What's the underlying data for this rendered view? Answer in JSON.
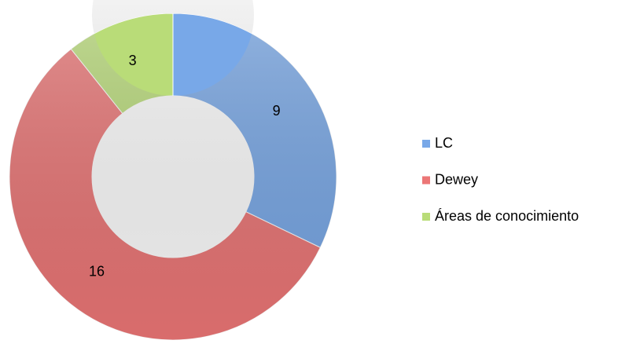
{
  "chart_data": {
    "type": "pie",
    "donut": true,
    "categories": [
      "LC",
      "Dewey",
      "Áreas de conocimiento"
    ],
    "values": [
      9,
      16,
      3
    ],
    "colors": [
      "#78a8e8",
      "#ec7676",
      "#b9dc78"
    ],
    "legend": "right"
  }
}
